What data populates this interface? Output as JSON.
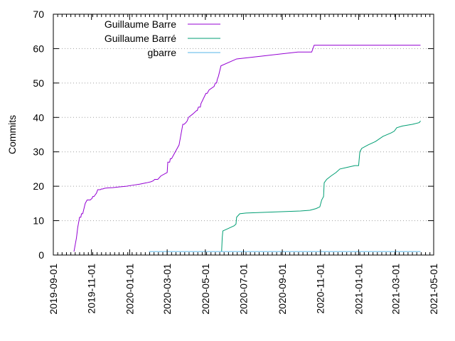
{
  "chart_data": {
    "type": "line",
    "title": "",
    "xlabel": "",
    "ylabel": "Commits",
    "ylim": [
      0,
      70
    ],
    "xlim": [
      "2019-09-01",
      "2021-05-01"
    ],
    "x_scale": "date",
    "grid": {
      "y": true,
      "x": false,
      "style": "dotted"
    },
    "legend_position": "top-left",
    "y_ticks": [
      0,
      10,
      20,
      30,
      40,
      50,
      60,
      70
    ],
    "x_ticks": [
      "2019-09-01",
      "2019-11-01",
      "2020-01-01",
      "2020-03-01",
      "2020-05-01",
      "2020-07-01",
      "2020-09-01",
      "2020-11-01",
      "2021-01-01",
      "2021-03-01",
      "2021-05-01"
    ],
    "series": [
      {
        "name": "Guillaume Barre",
        "color": "#9400d3",
        "x": [
          "2019-10-04",
          "2019-10-06",
          "2019-10-08",
          "2019-10-10",
          "2019-10-12",
          "2019-10-13",
          "2019-10-15",
          "2019-10-16",
          "2019-10-18",
          "2019-10-22",
          "2019-10-25",
          "2019-10-27",
          "2019-10-30",
          "2019-11-02",
          "2019-11-03",
          "2019-11-05",
          "2019-11-07",
          "2019-11-09",
          "2019-11-11",
          "2019-11-13",
          "2019-11-15",
          "2019-11-17",
          "2019-11-19",
          "2019-11-22",
          "2019-11-27",
          "2019-12-05",
          "2019-12-15",
          "2019-12-27",
          "2020-01-06",
          "2020-01-17",
          "2020-01-28",
          "2020-02-04",
          "2020-02-08",
          "2020-02-10",
          "2020-02-15",
          "2020-02-20",
          "2020-03-01",
          "2020-03-02",
          "2020-03-05",
          "2020-03-06",
          "2020-03-08",
          "2020-03-20",
          "2020-03-21",
          "2020-03-26",
          "2020-03-28",
          "2020-03-31",
          "2020-04-02",
          "2020-04-04",
          "2020-04-11",
          "2020-04-17",
          "2020-04-18",
          "2020-04-20",
          "2020-04-23",
          "2020-04-24",
          "2020-05-02",
          "2020-05-04",
          "2020-05-07",
          "2020-05-15",
          "2020-05-17",
          "2020-05-19",
          "2020-05-20",
          "2020-05-22",
          "2020-05-26",
          "2020-06-20",
          "2020-08-08",
          "2020-09-26",
          "2020-10-11",
          "2020-10-18",
          "2020-10-20",
          "2020-10-22",
          "2021-01-01",
          "2021-03-01",
          "2021-04-10"
        ],
        "values": [
          1,
          3,
          5,
          8,
          10,
          11,
          11,
          12,
          12,
          15,
          16,
          16,
          16,
          16.5,
          17,
          17,
          17.5,
          18,
          19,
          19,
          19,
          19.2,
          19.2,
          19.4,
          19.5,
          19.6,
          19.8,
          20,
          20.3,
          20.6,
          21,
          21.3,
          21.6,
          22,
          22,
          23,
          24,
          27,
          27,
          28,
          28,
          32,
          33,
          38,
          38,
          38.5,
          39,
          40,
          41,
          42,
          42,
          43,
          43,
          44,
          47,
          47,
          48,
          49,
          50,
          50,
          51,
          52,
          55,
          57,
          58,
          59,
          59,
          59,
          60,
          61,
          61,
          61,
          61
        ]
      },
      {
        "name": "Guillaume Barré",
        "color": "#009e73",
        "x": [
          "2020-05-27",
          "2020-05-28",
          "2020-05-29",
          "2020-06-04",
          "2020-06-16",
          "2020-06-19",
          "2020-06-20",
          "2020-06-25",
          "2020-07-05",
          "2020-08-15",
          "2020-09-30",
          "2020-10-15",
          "2020-10-25",
          "2020-10-31",
          "2020-11-03",
          "2020-11-06",
          "2020-11-07",
          "2020-11-11",
          "2020-11-18",
          "2020-11-26",
          "2020-12-02",
          "2020-12-14",
          "2020-12-26",
          "2021-01-01",
          "2021-01-03",
          "2021-01-06",
          "2021-01-16",
          "2021-01-28",
          "2021-02-09",
          "2021-02-22",
          "2021-02-27",
          "2021-03-03",
          "2021-03-12",
          "2021-03-28",
          "2021-04-08",
          "2021-04-10"
        ],
        "values": [
          1,
          5,
          7,
          7.5,
          8.5,
          9,
          11,
          12,
          12.2,
          12.5,
          12.8,
          13,
          13.5,
          14,
          16,
          17,
          21,
          22,
          23,
          24,
          25,
          25.5,
          26,
          26,
          30,
          31,
          32,
          33,
          34.5,
          35.5,
          36,
          37,
          37.5,
          38,
          38.5,
          39
        ]
      },
      {
        "name": "gbarre",
        "color": "#56b4e9",
        "x": [
          "2020-02-01",
          "2021-04-10"
        ],
        "values": [
          1,
          1
        ]
      }
    ]
  }
}
